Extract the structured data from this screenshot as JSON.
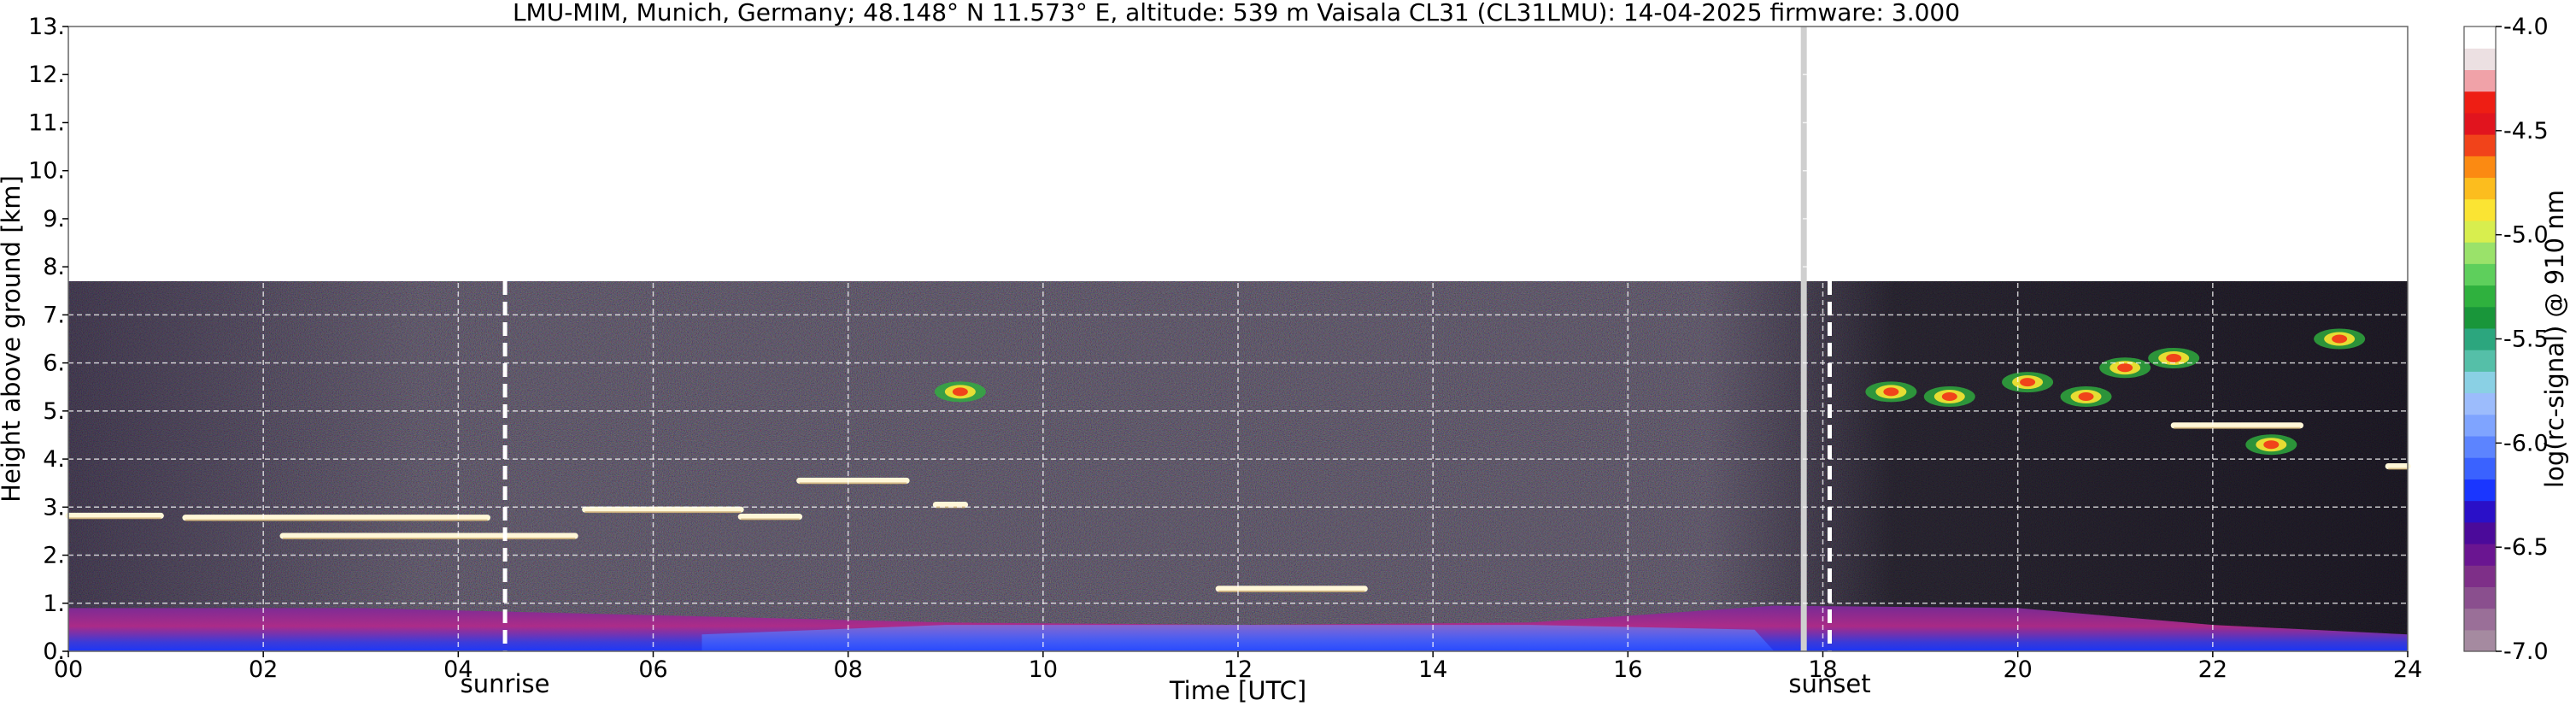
{
  "chart_data": {
    "type": "heatmap",
    "title": "LMU-MIM, Munich, Germany; 48.148° N 11.573° E, altitude: 539 m    Vaisala CL31 (CL31LMU): 14-04-2025    firmware: 3.000",
    "xlabel": "Time [UTC]",
    "ylabel": "Height above ground [km]",
    "xlim": [
      0,
      24
    ],
    "ylim": [
      0,
      13
    ],
    "x_ticks": [
      "00",
      "02",
      "04",
      "06",
      "08",
      "10",
      "12",
      "14",
      "16",
      "18",
      "20",
      "22",
      "24"
    ],
    "y_ticks": [
      "0.",
      "1.",
      "2.",
      "3.",
      "4.",
      "5.",
      "6.",
      "7.",
      "8.",
      "9.",
      "10.",
      "11.",
      "12.",
      "13."
    ],
    "grid": true,
    "data_top_km": 7.7,
    "colorbar": {
      "label": "log(rc-signal) @ 910 nm",
      "range": [
        -7.0,
        -4.0
      ],
      "tick_labels": [
        "-4.0",
        "-4.5",
        "-5.0",
        "-5.5",
        "-6.0",
        "-6.5",
        "-7.0"
      ],
      "colors": [
        "#a58aa0",
        "#9a6f98",
        "#8a4f8e",
        "#7e2f88",
        "#6a1591",
        "#4b0a9a",
        "#2a10c8",
        "#1a36ff",
        "#3a62ff",
        "#5c84ff",
        "#7fa4ff",
        "#9cbcfc",
        "#8ad0e4",
        "#55bfa8",
        "#2ca67e",
        "#19963a",
        "#2fb13e",
        "#5ecf5c",
        "#9ae26a",
        "#d8ee4e",
        "#fbe433",
        "#fcbd1e",
        "#fb8a12",
        "#f1431a",
        "#e1141e",
        "#ee1e14",
        "#f0a2a8",
        "#ece0e2",
        "#ffffff"
      ]
    },
    "markers": [
      {
        "label": "sunrise",
        "time": 4.48
      },
      {
        "label": "sunset",
        "time": 18.07
      }
    ],
    "cloud_layers": [
      {
        "t_start": 0.0,
        "t_end": 0.95,
        "height_km": 2.82
      },
      {
        "t_start": 1.2,
        "t_end": 4.3,
        "height_km": 2.78
      },
      {
        "t_start": 2.2,
        "t_end": 5.2,
        "height_km": 2.4
      },
      {
        "t_start": 5.3,
        "t_end": 6.9,
        "height_km": 2.95
      },
      {
        "t_start": 6.9,
        "t_end": 7.5,
        "height_km": 2.8
      },
      {
        "t_start": 7.5,
        "t_end": 8.6,
        "height_km": 3.55
      },
      {
        "t_start": 8.9,
        "t_end": 9.2,
        "height_km": 3.05
      },
      {
        "t_start": 11.8,
        "t_end": 13.3,
        "height_km": 1.3
      },
      {
        "t_start": 21.6,
        "t_end": 22.9,
        "height_km": 4.7
      },
      {
        "t_start": 23.8,
        "t_end": 24.0,
        "height_km": 3.85
      }
    ],
    "colored_cloud_patches": [
      {
        "time": 9.15,
        "height_km": 5.4
      },
      {
        "time": 18.7,
        "height_km": 5.4
      },
      {
        "time": 19.3,
        "height_km": 5.3
      },
      {
        "time": 20.1,
        "height_km": 5.6
      },
      {
        "time": 20.7,
        "height_km": 5.3
      },
      {
        "time": 21.1,
        "height_km": 5.9
      },
      {
        "time": 21.6,
        "height_km": 6.1
      },
      {
        "time": 22.6,
        "height_km": 4.3
      },
      {
        "time": 23.3,
        "height_km": 6.5
      }
    ],
    "boundary_layer_top_km": [
      {
        "t": 0,
        "h": 0.9
      },
      {
        "t": 3,
        "h": 0.9
      },
      {
        "t": 6,
        "h": 0.75
      },
      {
        "t": 9,
        "h": 0.6
      },
      {
        "t": 12,
        "h": 0.55
      },
      {
        "t": 15,
        "h": 0.6
      },
      {
        "t": 17.5,
        "h": 0.95
      },
      {
        "t": 20,
        "h": 0.9
      },
      {
        "t": 22,
        "h": 0.55
      },
      {
        "t": 24,
        "h": 0.35
      }
    ]
  }
}
